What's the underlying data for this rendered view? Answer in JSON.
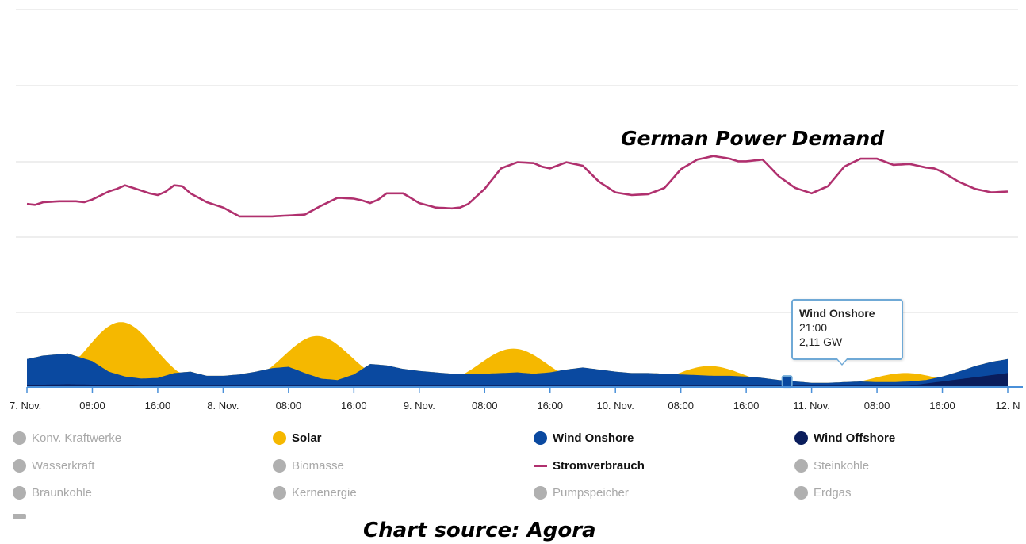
{
  "chart_data": {
    "type": "area",
    "x_start": "7. Nov.",
    "x_tick_labels": [
      "7. Nov.",
      "08:00",
      "16:00",
      "8. Nov.",
      "08:00",
      "16:00",
      "9. Nov.",
      "08:00",
      "16:00",
      "10. Nov.",
      "08:00",
      "16:00",
      "11. Nov.",
      "08:00",
      "16:00",
      "12. N"
    ],
    "annotation": "German  Power Demand",
    "source_note": "Chart source: Agora",
    "grid": true,
    "demand_series": {
      "name": "Stromverbrauch",
      "color": "#b0306e",
      "hours": [
        0,
        1,
        2,
        4,
        6,
        7,
        8,
        10,
        11,
        12,
        14,
        15,
        16,
        17,
        18,
        19,
        20,
        22,
        24,
        26,
        28,
        30,
        32,
        34,
        36,
        38,
        40,
        41,
        42,
        43,
        44,
        46,
        48,
        50,
        52,
        53,
        54,
        56,
        58,
        60,
        62,
        63,
        64,
        66,
        68,
        70,
        72,
        74,
        76,
        78,
        80,
        82,
        84,
        86,
        87,
        88,
        90,
        92,
        94,
        96,
        98,
        100,
        102,
        104,
        106,
        108,
        110,
        111,
        112,
        114,
        116,
        118,
        120
      ],
      "relative_level": [
        0.4,
        0.39,
        0.42,
        0.43,
        0.43,
        0.42,
        0.45,
        0.54,
        0.57,
        0.61,
        0.55,
        0.52,
        0.5,
        0.54,
        0.61,
        0.6,
        0.52,
        0.42,
        0.36,
        0.26,
        0.26,
        0.26,
        0.27,
        0.28,
        0.38,
        0.47,
        0.46,
        0.44,
        0.41,
        0.45,
        0.52,
        0.52,
        0.41,
        0.36,
        0.35,
        0.36,
        0.4,
        0.57,
        0.8,
        0.87,
        0.86,
        0.82,
        0.8,
        0.87,
        0.83,
        0.65,
        0.53,
        0.5,
        0.51,
        0.58,
        0.79,
        0.9,
        0.94,
        0.91,
        0.88,
        0.88,
        0.9,
        0.71,
        0.58,
        0.52,
        0.6,
        0.82,
        0.91,
        0.91,
        0.84,
        0.85,
        0.81,
        0.8,
        0.76,
        0.65,
        0.57,
        0.53,
        0.54
      ]
    },
    "generation_series": [
      {
        "name": "Wind Onshore",
        "color": "#0a49a0",
        "hours": [
          0,
          2,
          5,
          8,
          10,
          12,
          14,
          16,
          18,
          20,
          22,
          24,
          26,
          28,
          30,
          32,
          34,
          36,
          38,
          40,
          42,
          44,
          46,
          48,
          50,
          52,
          54,
          56,
          58,
          60,
          62,
          64,
          66,
          68,
          70,
          72,
          74,
          76,
          78,
          80,
          82,
          84,
          86,
          88,
          90,
          92,
          94,
          96,
          98,
          100,
          102,
          104,
          106,
          108,
          110,
          112,
          114,
          116,
          118,
          120
        ],
        "relative_level": [
          0.4,
          0.45,
          0.48,
          0.37,
          0.22,
          0.15,
          0.12,
          0.13,
          0.2,
          0.22,
          0.16,
          0.16,
          0.18,
          0.22,
          0.27,
          0.29,
          0.2,
          0.12,
          0.1,
          0.18,
          0.33,
          0.31,
          0.26,
          0.23,
          0.21,
          0.19,
          0.19,
          0.19,
          0.2,
          0.21,
          0.19,
          0.21,
          0.25,
          0.28,
          0.25,
          0.22,
          0.2,
          0.2,
          0.19,
          0.18,
          0.17,
          0.16,
          0.16,
          0.15,
          0.13,
          0.1,
          0.08,
          0.06,
          0.06,
          0.07,
          0.08,
          0.07,
          0.07,
          0.08,
          0.1,
          0.15,
          0.22,
          0.3,
          0.36,
          0.4
        ]
      },
      {
        "name": "Wind Offshore",
        "color": "#0a1d5c",
        "hours": [
          0,
          5,
          10,
          14,
          16,
          20,
          24,
          30,
          36,
          40,
          44,
          48,
          54,
          60,
          66,
          72,
          78,
          84,
          90,
          96,
          100,
          104,
          108,
          110,
          112,
          114,
          116,
          118,
          120
        ],
        "relative_level": [
          0.03,
          0.04,
          0.03,
          0.02,
          0.02,
          0.02,
          0.02,
          0.02,
          0.02,
          0.02,
          0.02,
          0.02,
          0.02,
          0.02,
          0.02,
          0.02,
          0.02,
          0.02,
          0.02,
          0.02,
          0.02,
          0.02,
          0.02,
          0.05,
          0.08,
          0.11,
          0.14,
          0.17,
          0.2
        ]
      },
      {
        "name": "Solar",
        "color": "#f5b800",
        "peaks": [
          {
            "center_hour": 11.5,
            "relative_height": 0.93
          },
          {
            "center_hour": 35.5,
            "relative_height": 0.73
          },
          {
            "center_hour": 59.5,
            "relative_height": 0.55
          },
          {
            "center_hour": 83.5,
            "relative_height": 0.3
          },
          {
            "center_hour": 107.5,
            "relative_height": 0.2
          }
        ]
      }
    ]
  },
  "tooltip": {
    "title": "Wind Onshore",
    "time": "21:00",
    "value": "2,11 GW"
  },
  "legend": {
    "col1": [
      {
        "label": "Konv. Kraftwerke",
        "color": "#b0b0b0",
        "active": false
      },
      {
        "label": "Wasserkraft",
        "color": "#b0b0b0",
        "active": false
      },
      {
        "label": "Braunkohle",
        "color": "#b0b0b0",
        "active": false
      }
    ],
    "col2": [
      {
        "label": "Solar",
        "color": "#f5b800",
        "active": true
      },
      {
        "label": "Biomasse",
        "color": "#b0b0b0",
        "active": false
      },
      {
        "label": "Kernenergie",
        "color": "#b0b0b0",
        "active": false
      }
    ],
    "col3": [
      {
        "label": "Wind Onshore",
        "color": "#0a49a0",
        "active": true
      },
      {
        "label": "Stromverbrauch",
        "color": "#b0306e",
        "active": true
      },
      {
        "label": "Pumpspeicher",
        "color": "#b0b0b0",
        "active": false
      }
    ],
    "col4": [
      {
        "label": "Wind Offshore",
        "color": "#0a1d5c",
        "active": true
      },
      {
        "label": "Steinkohle",
        "color": "#b0b0b0",
        "active": false
      },
      {
        "label": "Erdgas",
        "color": "#b0b0b0",
        "active": false
      }
    ]
  }
}
